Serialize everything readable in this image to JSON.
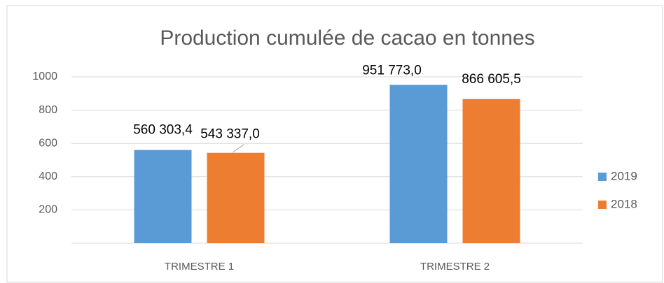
{
  "chart_data": {
    "type": "bar",
    "title": "Production cumulée de cacao en tonnes",
    "categories": [
      "TRIMESTRE 1",
      "TRIMESTRE 2"
    ],
    "series": [
      {
        "name": "2019",
        "color": "#5b9bd5",
        "values": [
          560.3034,
          951.773
        ],
        "value_labels": [
          "560 303,4",
          "951 773,0"
        ]
      },
      {
        "name": "2018",
        "color": "#ed7d31",
        "values": [
          543.337,
          866.6055
        ],
        "value_labels": [
          "543 337,0",
          "866 605,5"
        ]
      }
    ],
    "ylim": [
      0,
      1000
    ],
    "yticks": [
      200,
      400,
      600,
      800,
      1000
    ],
    "grid": true,
    "legend": "right"
  }
}
